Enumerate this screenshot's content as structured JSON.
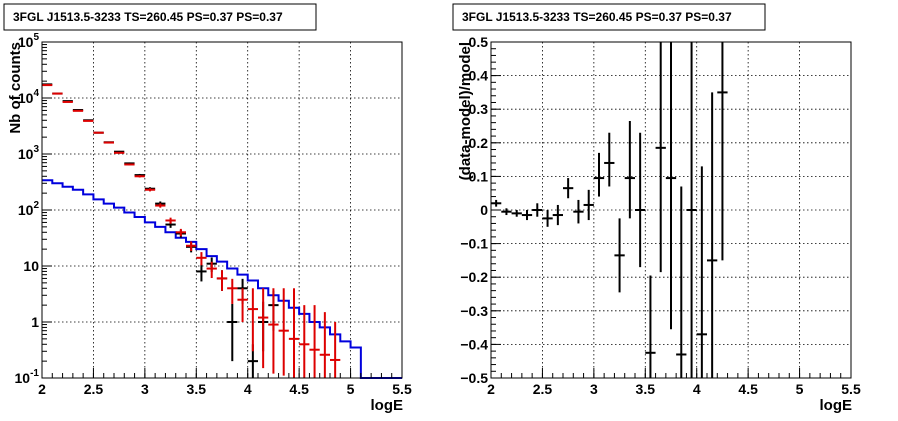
{
  "chart_data": [
    {
      "type": "scatter",
      "title": "3FGL J1513.5-3233 TS=260.45 PS=0.37 PS=0.37",
      "xlabel": "logE",
      "ylabel": "Nb of counts",
      "xlim": [
        2,
        5.5
      ],
      "ylim": [
        0.1,
        100000
      ],
      "yscale": "log",
      "x_ticks": [
        "2",
        "2.5",
        "3",
        "3.5",
        "4",
        "4.5",
        "5",
        "5.5"
      ],
      "y_ticks": [
        "10^{-1}",
        "1",
        "10",
        "10^{2}",
        "10^{3}",
        "10^{4}",
        "10^{5}"
      ],
      "grid": true,
      "bin_edges": [
        2.0,
        2.1,
        2.2,
        2.3,
        2.4,
        2.5,
        2.6,
        2.7,
        2.8,
        2.9,
        3.0,
        3.1,
        3.2,
        3.3,
        3.4,
        3.5,
        3.6,
        3.7,
        3.8,
        3.9,
        4.0,
        4.1,
        4.2,
        4.3,
        4.4,
        4.5,
        4.6,
        4.7,
        4.8,
        4.9,
        5.0,
        5.1,
        5.2,
        5.3,
        5.4,
        5.5
      ],
      "series": [
        {
          "color": "#0000dd",
          "style": "histogram",
          "values": [
            340,
            300,
            260,
            230,
            190,
            155,
            130,
            110,
            90,
            75,
            60,
            50,
            40,
            32,
            27,
            20,
            15,
            12,
            9,
            7,
            5.5,
            4,
            3,
            2.4,
            1.8,
            1.4,
            1,
            0.8,
            0.6,
            0.45,
            0.35,
            0.1,
            0.1,
            0.1,
            0.1
          ]
        },
        {
          "color": "#000000",
          "style": "points",
          "x": [
            2.05,
            2.15,
            2.25,
            2.35,
            2.45,
            2.55,
            2.65,
            2.75,
            2.85,
            2.95,
            3.05,
            3.15,
            3.25,
            3.35,
            3.45,
            3.55,
            3.65,
            3.75,
            3.85,
            3.95,
            4.05,
            4.15,
            4.25
          ],
          "y": [
            17500,
            12000,
            8800,
            6100,
            4000,
            2400,
            1620,
            1100,
            680,
            420,
            240,
            130,
            55,
            38,
            22,
            8,
            11,
            6,
            1,
            4,
            0.2,
            1,
            2
          ],
          "yerr_low": [
            17000,
            11700,
            8600,
            5980,
            3930,
            2350,
            1580,
            1067,
            654,
            400,
            225,
            118,
            48,
            32,
            17.5,
            5.3,
            7.8,
            3.6,
            0.2,
            2.1,
            0.1,
            0.3,
            0.7
          ],
          "yerr_high": [
            18000,
            12300,
            9000,
            6220,
            4070,
            2450,
            1660,
            1133,
            706,
            440,
            255,
            142,
            62,
            44,
            26.5,
            10.7,
            14.2,
            8.4,
            2.1,
            5.9,
            0.4,
            2.3,
            3.6
          ]
        },
        {
          "color": "#dd0000",
          "style": "points",
          "x": [
            2.05,
            2.15,
            2.25,
            2.35,
            2.45,
            2.55,
            2.65,
            2.75,
            2.85,
            2.95,
            3.05,
            3.15,
            3.25,
            3.35,
            3.45,
            3.55,
            3.65,
            3.75,
            3.85,
            3.95,
            4.05,
            4.15,
            4.25,
            4.35,
            4.45,
            4.55,
            4.65,
            4.75,
            4.85
          ],
          "y": [
            17000,
            12000,
            8500,
            5900,
            3900,
            2400,
            1600,
            1050,
            650,
            400,
            230,
            120,
            65,
            40,
            23,
            14,
            9,
            6,
            4,
            2.5,
            1.7,
            1.2,
            0.9,
            0.7,
            0.5,
            0.4,
            0.32,
            0.26,
            0.21
          ],
          "yerr_low": [
            16500,
            11700,
            8300,
            5750,
            3830,
            2350,
            1560,
            1020,
            625,
            380,
            215,
            110,
            57,
            34,
            18.5,
            10.3,
            6.1,
            3.6,
            2.1,
            1,
            0.3,
            0.15,
            0.12,
            0.11,
            0.1,
            0.1,
            0.1,
            0.1,
            0.1
          ],
          "yerr_high": [
            17500,
            12300,
            8700,
            6050,
            3970,
            2450,
            1640,
            1080,
            675,
            420,
            245,
            131,
            73,
            46,
            27.5,
            17.7,
            11.9,
            8.4,
            5.9,
            4,
            4,
            4,
            4,
            4,
            4,
            2,
            2,
            1.5,
            1
          ]
        }
      ]
    },
    {
      "type": "scatter",
      "title": "3FGL J1513.5-3233 TS=260.45 PS=0.37 PS=0.37",
      "xlabel": "logE",
      "ylabel": "(data-model)/model",
      "xlim": [
        2,
        5.5
      ],
      "ylim": [
        -0.5,
        0.5
      ],
      "x_ticks": [
        "2",
        "2.5",
        "3",
        "3.5",
        "4",
        "4.5",
        "5",
        "5.5"
      ],
      "y_ticks": [
        "-0.5",
        "-0.4",
        "-0.3",
        "-0.2",
        "-0.1",
        "0",
        "0.1",
        "0.2",
        "0.3",
        "0.4",
        "0.5"
      ],
      "grid": true,
      "series": [
        {
          "color": "#000000",
          "style": "points",
          "x": [
            2.05,
            2.15,
            2.25,
            2.35,
            2.45,
            2.55,
            2.65,
            2.75,
            2.85,
            2.95,
            3.05,
            3.15,
            3.25,
            3.35,
            3.45,
            3.55,
            3.65,
            3.75,
            3.85,
            3.95,
            4.05,
            4.15,
            4.25
          ],
          "y": [
            0.02,
            -0.005,
            -0.01,
            -0.015,
            0.0,
            -0.025,
            -0.015,
            0.065,
            -0.005,
            0.015,
            0.095,
            0.14,
            -0.135,
            0.095,
            0.0,
            -0.425,
            0.185,
            0.095,
            -0.43,
            0.0,
            -0.37,
            -0.15,
            0.35
          ],
          "yerr_low": [
            0.01,
            0.01,
            0.01,
            0.015,
            0.02,
            0.025,
            0.03,
            0.03,
            0.035,
            0.045,
            0.055,
            0.07,
            0.11,
            0.12,
            0.17,
            0.23,
            0.37,
            0.45,
            0.5,
            0.5,
            0.5,
            0.5,
            0.5
          ],
          "yerr_high": [
            0.01,
            0.01,
            0.01,
            0.015,
            0.02,
            0.025,
            0.03,
            0.03,
            0.035,
            0.045,
            0.075,
            0.09,
            0.11,
            0.17,
            0.23,
            0.23,
            0.45,
            0.45,
            0.5,
            0.5,
            0.5,
            0.5,
            0.5
          ]
        }
      ]
    }
  ]
}
